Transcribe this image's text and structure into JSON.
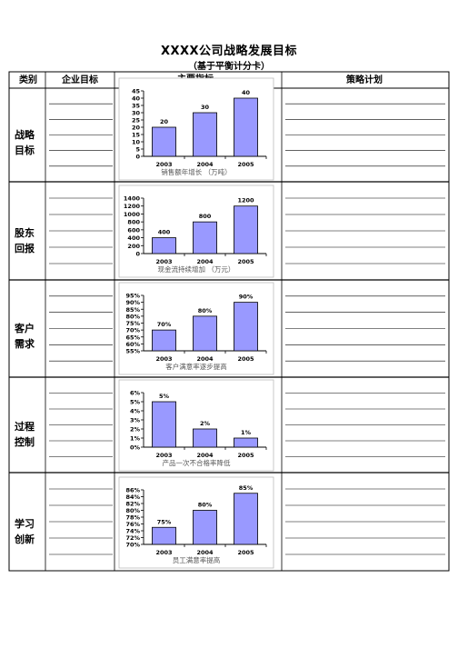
{
  "title": "XXXX公司战略发展目标",
  "subtitle": "（基于平衡计分卡）",
  "headers": {
    "category": "类别",
    "goals": "企业目标",
    "indicators": "主要指标",
    "plan": "策略计划"
  },
  "categories": [
    {
      "line1": "战略",
      "line2": "目标"
    },
    {
      "line1": "股东",
      "line2": "回报"
    },
    {
      "line1": "客户",
      "line2": "需求"
    },
    {
      "line1": "过程",
      "line2": "控制"
    },
    {
      "line1": "学习",
      "line2": "创新"
    }
  ],
  "chart_data": [
    {
      "type": "bar",
      "categories": [
        "2003",
        "2004",
        "2005"
      ],
      "values": [
        20,
        30,
        40
      ],
      "value_labels": [
        "20",
        "30",
        "40"
      ],
      "yticks": [
        "0",
        "5",
        "10",
        "15",
        "20",
        "25",
        "30",
        "35",
        "40",
        "45"
      ],
      "ylim": [
        0,
        45
      ],
      "caption": "销售额年增长            （万吨）"
    },
    {
      "type": "bar",
      "categories": [
        "2003",
        "2004",
        "2005"
      ],
      "values": [
        400,
        800,
        1200
      ],
      "value_labels": [
        "400",
        "800",
        "1200"
      ],
      "yticks": [
        "0",
        "200",
        "400",
        "600",
        "800",
        "1000",
        "1200",
        "1400"
      ],
      "ylim": [
        0,
        1400
      ],
      "caption": "现金流持续增加            （万元）"
    },
    {
      "type": "bar",
      "categories": [
        "2003",
        "2004",
        "2005"
      ],
      "values": [
        70,
        80,
        90
      ],
      "value_labels": [
        "70%",
        "80%",
        "90%"
      ],
      "yticks": [
        "55%",
        "60%",
        "65%",
        "70%",
        "75%",
        "80%",
        "85%",
        "90%",
        "95%"
      ],
      "ylim": [
        55,
        95
      ],
      "caption": "客户满意率逐步提高"
    },
    {
      "type": "bar",
      "categories": [
        "2003",
        "2004",
        "2005"
      ],
      "values": [
        5,
        2,
        1
      ],
      "value_labels": [
        "5%",
        "2%",
        "1%"
      ],
      "yticks": [
        "0%",
        "1%",
        "2%",
        "3%",
        "4%",
        "5%",
        "6%"
      ],
      "ylim": [
        0,
        6
      ],
      "caption": "产品一次不合格率降低"
    },
    {
      "type": "bar",
      "categories": [
        "2003",
        "2004",
        "2005"
      ],
      "values": [
        75,
        80,
        85
      ],
      "value_labels": [
        "75%",
        "80%",
        "85%"
      ],
      "yticks": [
        "70%",
        "72%",
        "74%",
        "76%",
        "78%",
        "80%",
        "82%",
        "84%",
        "86%"
      ],
      "ylim": [
        70,
        86
      ],
      "caption": "员工满意率提高"
    }
  ]
}
